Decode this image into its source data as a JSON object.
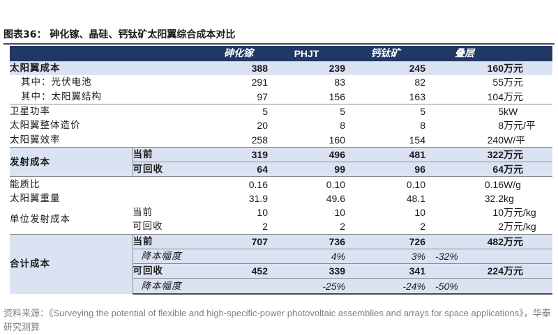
{
  "title": "图表36：  砷化镓、晶硅、钙钛矿太阳翼综合成本对比",
  "header": [
    "",
    "",
    "砷化镓",
    "PHJT",
    "钙钛矿",
    "叠层",
    ""
  ],
  "rows": {
    "r1": [
      "太阳翼成本",
      "388",
      "239",
      "245",
      "160",
      "万元"
    ],
    "r2": [
      "其中：光伏电池",
      "291",
      "83",
      "82",
      "55",
      "万元"
    ],
    "r3": [
      "其中：太阳翼结构",
      "97",
      "156",
      "163",
      "104",
      "万元"
    ],
    "r4": [
      "卫星功率",
      "5",
      "5",
      "5",
      "5",
      "kW"
    ],
    "r5": [
      "太阳翼整体造价",
      "20",
      "8",
      "8",
      "8",
      "万元/平"
    ],
    "r6": [
      "太阳翼效率",
      "258",
      "160",
      "154",
      "240",
      "W/平"
    ],
    "r7": [
      "发射成本",
      "当前",
      "319",
      "496",
      "481",
      "322",
      "万元"
    ],
    "r8": [
      "可回收",
      "64",
      "99",
      "96",
      "64",
      "万元"
    ],
    "r9": [
      "能质比",
      "0.16",
      "0.10",
      "0.10",
      "0.16",
      "W/g"
    ],
    "r10": [
      "太阳翼重量",
      "31.9",
      "49.6",
      "48.1",
      "32.2",
      "kg"
    ],
    "r11": [
      "单位发射成本",
      "当前",
      "10",
      "10",
      "10",
      "10",
      "万元/kg"
    ],
    "r12": [
      "可回收",
      "2",
      "2",
      "2",
      "2",
      "万元/kg"
    ],
    "r13": [
      "合计成本",
      "当前",
      "707",
      "736",
      "726",
      "482",
      "万元"
    ],
    "r14": [
      "降本幅度",
      "",
      "4%",
      "3%",
      "-32%",
      ""
    ],
    "r15": [
      "可回收",
      "452",
      "339",
      "341",
      "224",
      "万元"
    ],
    "r16": [
      "降本幅度",
      "",
      "-25%",
      "-24%",
      "-50%",
      ""
    ]
  },
  "source": "资料来源：《Surveying the potential of flexible and high-specific-power photovoltaic assemblies and arrays for space applications》，华泰研究测算",
  "colors": {
    "header_bg": "#1f3864",
    "band_bg": "#dbe3f3",
    "rule": "#4a4a4a"
  }
}
